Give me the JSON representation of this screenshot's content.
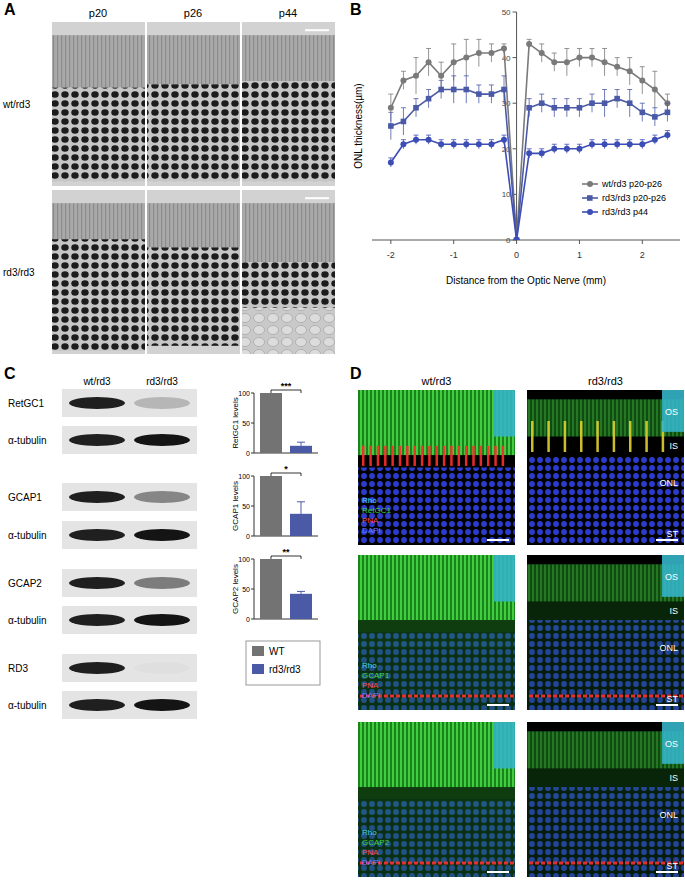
{
  "figure": {
    "panel_a": {
      "label": "A",
      "columns": [
        "p20",
        "p26",
        "p44"
      ],
      "rows": [
        "wt/rd3",
        "rd3/rd3"
      ]
    },
    "panel_b": {
      "label": "B"
    },
    "panel_c": {
      "label": "C",
      "columns": [
        "wt/rd3",
        "rd3/rd3"
      ],
      "blots": [
        "RetGC1",
        "α-tubulin",
        "GCAP1",
        "α-tubulin",
        "GCAP2",
        "α-tubulin",
        "RD3",
        "α-tubulin"
      ]
    },
    "panel_d": {
      "label": "D",
      "columns": [
        "wt/rd3",
        "rd3/rd3"
      ],
      "rows": [
        [
          "Rho",
          "RetGC1",
          "PNA",
          "DAPI"
        ],
        [
          "Rho",
          "GCAP1",
          "PNA",
          "DAPI"
        ],
        [
          "Rho",
          "GCAP2",
          "PNA",
          "DAPI"
        ]
      ],
      "layers": [
        "OS",
        "IS",
        "ONL",
        "ST"
      ]
    }
  },
  "chart_data": [
    {
      "type": "line",
      "x_label": "Distance from the Optic Nerve (mm)",
      "y_label": "ONL thickness(µm)",
      "x": [
        -2.0,
        -1.8,
        -1.6,
        -1.4,
        -1.2,
        -1.0,
        -0.8,
        -0.6,
        -0.4,
        -0.2,
        0,
        0.2,
        0.4,
        0.6,
        0.8,
        1.0,
        1.2,
        1.4,
        1.6,
        1.8,
        2.0,
        2.2,
        2.4
      ],
      "series": [
        {
          "name": "wt/rd3 p20-p26",
          "color": "#7a7a7a",
          "marker": "circle",
          "values": [
            29,
            35,
            36,
            39,
            36,
            39,
            40,
            41,
            41,
            42,
            0,
            43,
            41,
            39,
            39,
            40,
            40,
            39,
            38,
            37,
            35,
            33,
            30
          ],
          "errors": [
            3,
            2,
            4,
            3,
            3,
            4,
            4,
            3,
            2,
            1,
            0,
            1,
            2,
            2,
            3,
            2,
            2,
            3,
            2,
            3,
            3,
            4,
            2
          ]
        },
        {
          "name": "rd3/rd3 p20-p26",
          "color": "#4b5aa6",
          "marker": "square",
          "values": [
            25,
            26,
            29,
            31,
            33,
            33,
            33,
            32,
            32,
            33,
            0,
            29,
            30,
            29,
            29,
            29,
            30,
            30,
            31,
            30,
            28,
            27,
            28
          ],
          "errors": [
            3,
            3,
            2,
            2,
            2,
            3,
            3,
            2,
            2,
            3,
            0,
            2,
            2,
            2,
            2,
            2,
            2,
            3,
            2,
            3,
            2,
            2,
            2
          ]
        },
        {
          "name": "rd3/rd3 p44",
          "color": "#3c4db5",
          "marker": "circle",
          "values": [
            17,
            21,
            22,
            22,
            21,
            21,
            21,
            21,
            21,
            22,
            0,
            19,
            19,
            20,
            20,
            20,
            21,
            21,
            21,
            21,
            21,
            22,
            23
          ],
          "errors": [
            1,
            1,
            1,
            1,
            1,
            1,
            1,
            1,
            1,
            1,
            0,
            1,
            1,
            1,
            1,
            1,
            1,
            1,
            1,
            1,
            1,
            1,
            1
          ]
        }
      ],
      "xlim": [
        -2.3,
        2.6
      ],
      "xticks": [
        -2,
        -1,
        0,
        1,
        2
      ],
      "ylim": [
        0,
        50
      ],
      "yticks": [
        0,
        10,
        20,
        30,
        40,
        50
      ],
      "legend": "lower right"
    },
    {
      "type": "bar",
      "y_label": "RetGC1 levels",
      "categories": [
        null
      ],
      "series": [
        {
          "color": "#737373",
          "values": [
            100
          ]
        },
        {
          "color": "#4b5aa6",
          "values": [
            12
          ],
          "errors": [
            6
          ]
        }
      ],
      "ylim": [
        0,
        100
      ],
      "yticks": [
        0,
        50,
        100
      ],
      "annotations": [
        "***"
      ]
    },
    {
      "type": "bar",
      "y_label": "GCAP1 levels",
      "categories": [
        null
      ],
      "series": [
        {
          "color": "#737373",
          "values": [
            100
          ]
        },
        {
          "color": "#4b5aa6",
          "values": [
            37
          ],
          "errors": [
            20
          ]
        }
      ],
      "ylim": [
        0,
        100
      ],
      "yticks": [
        0,
        50,
        100
      ],
      "annotations": [
        "*"
      ]
    },
    {
      "type": "bar",
      "y_label": "GCAP2 levels",
      "categories": [
        null
      ],
      "series": [
        {
          "name": "WT",
          "color": "#737373",
          "values": [
            100
          ]
        },
        {
          "name": "rd3/rd3",
          "color": "#4b5aa6",
          "values": [
            42
          ],
          "errors": [
            4
          ]
        }
      ],
      "ylim": [
        0,
        100
      ],
      "yticks": [
        0,
        50,
        100
      ],
      "annotations": [
        "**"
      ],
      "legend": "bottom"
    }
  ]
}
